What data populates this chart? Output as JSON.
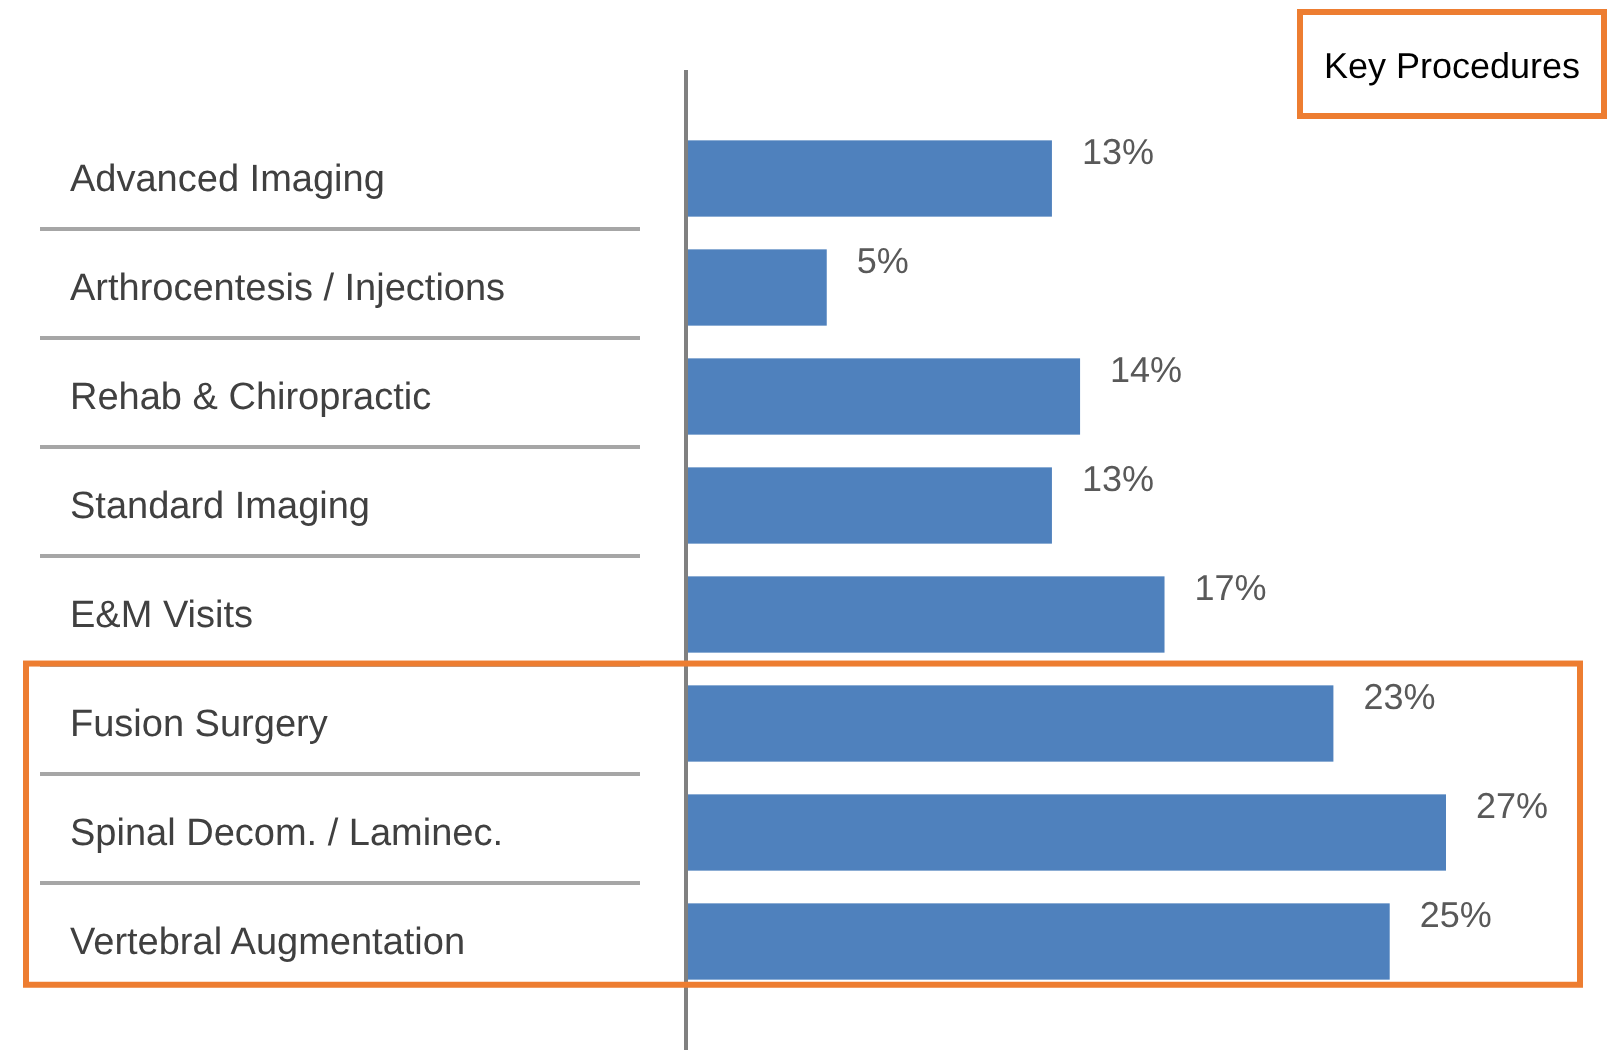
{
  "chart_data": {
    "type": "bar",
    "orientation": "horizontal",
    "categories": [
      "Advanced Imaging",
      "Arthrocentesis / Injections",
      "Rehab & Chiropractic",
      "Standard Imaging",
      "E&M Visits",
      "Fusion Surgery",
      "Spinal Decom. / Laminec.",
      "Vertebral Augmentation"
    ],
    "values": [
      13,
      5,
      14,
      13,
      17,
      23,
      27,
      25
    ],
    "color": "#4f81bd",
    "data_labels": true,
    "value_labels": [
      "13%",
      "5%",
      "14%",
      "13%",
      "17%",
      "23%",
      "27%",
      "25%"
    ],
    "annotations": [
      "Key Procedures"
    ]
  }
}
